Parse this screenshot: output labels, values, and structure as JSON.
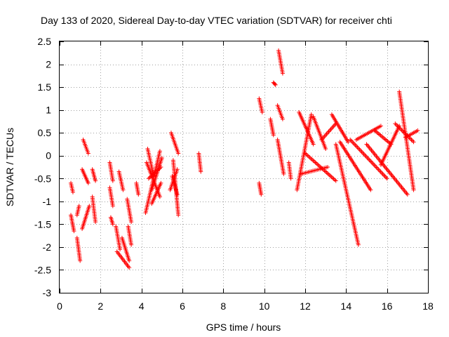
{
  "chart_data": {
    "type": "scatter",
    "title": "Day 133 of 2020, Sidereal Day-to-day VTEC variation (SDTVAR) for receiver chti",
    "xlabel": "GPS time / hours",
    "ylabel": "SDTVAR / TECUs",
    "xlim": [
      0,
      18
    ],
    "ylim": [
      -3,
      2.5
    ],
    "xticks": [
      0,
      2,
      4,
      6,
      8,
      10,
      12,
      14,
      16,
      18
    ],
    "yticks": [
      -3,
      -2.5,
      -2,
      -1.5,
      -1,
      -0.5,
      0,
      0.5,
      1,
      1.5,
      2,
      2.5
    ],
    "xtick_labels": [
      "0",
      "2",
      "4",
      "6",
      "8",
      "10",
      "12",
      "14",
      "16",
      "18"
    ],
    "ytick_labels": [
      "-3",
      "-2.5",
      "-2",
      "-1.5",
      "-1",
      "-0.5",
      "0",
      "0.5",
      "1",
      "1.5",
      "2",
      "2.5"
    ],
    "grid": true,
    "marker": "+",
    "color": "#ff0000",
    "series": [
      {
        "name": "SDTVAR",
        "segments": [
          {
            "x": [
              0.55,
              0.65
            ],
            "y": [
              -0.6,
              -0.8
            ]
          },
          {
            "x": [
              0.55,
              0.7
            ],
            "y": [
              -1.3,
              -1.65
            ]
          },
          {
            "x": [
              0.85,
              0.95
            ],
            "y": [
              -1.3,
              -1.1
            ]
          },
          {
            "x": [
              0.85,
              1.0
            ],
            "y": [
              -1.8,
              -2.3
            ]
          },
          {
            "x": [
              1.15,
              1.4
            ],
            "y": [
              0.35,
              0.05
            ]
          },
          {
            "x": [
              1.1,
              1.4
            ],
            "y": [
              -0.3,
              -0.6
            ]
          },
          {
            "x": [
              1.1,
              1.45
            ],
            "y": [
              -1.6,
              -1.1
            ]
          },
          {
            "x": [
              1.6,
              1.75
            ],
            "y": [
              -0.3,
              -0.55
            ]
          },
          {
            "x": [
              1.6,
              1.75
            ],
            "y": [
              -0.9,
              -1.45
            ]
          },
          {
            "x": [
              2.45,
              2.6
            ],
            "y": [
              -0.15,
              -0.55
            ]
          },
          {
            "x": [
              2.45,
              2.6
            ],
            "y": [
              -0.7,
              -1.1
            ]
          },
          {
            "x": [
              2.5,
              2.6
            ],
            "y": [
              -1.35,
              -1.5
            ]
          },
          {
            "x": [
              2.75,
              2.95
            ],
            "y": [
              -1.55,
              -2.05
            ]
          },
          {
            "x": [
              2.8,
              3.4
            ],
            "y": [
              -2.1,
              -2.45
            ]
          },
          {
            "x": [
              3.05,
              3.4
            ],
            "y": [
              -1.8,
              -2.3
            ]
          },
          {
            "x": [
              2.9,
              3.1
            ],
            "y": [
              -0.35,
              -0.75
            ]
          },
          {
            "x": [
              3.3,
              3.5
            ],
            "y": [
              -0.95,
              -1.45
            ]
          },
          {
            "x": [
              3.35,
              3.5
            ],
            "y": [
              -1.55,
              -1.95
            ]
          },
          {
            "x": [
              3.75,
              3.85
            ],
            "y": [
              -0.6,
              -0.85
            ]
          },
          {
            "x": [
              4.2,
              4.9
            ],
            "y": [
              -1.25,
              0.1
            ]
          },
          {
            "x": [
              4.25,
              4.9
            ],
            "y": [
              -0.15,
              -0.9
            ]
          },
          {
            "x": [
              4.35,
              4.95
            ],
            "y": [
              -0.5,
              -0.25
            ]
          },
          {
            "x": [
              4.5,
              5.0
            ],
            "y": [
              -0.75,
              -0.05
            ]
          },
          {
            "x": [
              4.3,
              4.6
            ],
            "y": [
              0.15,
              -0.45
            ]
          },
          {
            "x": [
              4.5,
              4.95
            ],
            "y": [
              -1.05,
              -0.6
            ]
          },
          {
            "x": [
              5.4,
              5.75
            ],
            "y": [
              -0.75,
              -0.3
            ]
          },
          {
            "x": [
              5.45,
              5.8
            ],
            "y": [
              0.5,
              0.05
            ]
          },
          {
            "x": [
              5.55,
              5.8
            ],
            "y": [
              -0.1,
              -1.3
            ]
          },
          {
            "x": [
              5.5,
              5.75
            ],
            "y": [
              -0.45,
              -0.85
            ]
          },
          {
            "x": [
              6.8,
              6.9
            ],
            "y": [
              0.05,
              -0.35
            ]
          },
          {
            "x": [
              9.75,
              9.9
            ],
            "y": [
              1.25,
              0.95
            ]
          },
          {
            "x": [
              9.75,
              9.85
            ],
            "y": [
              -0.6,
              -0.85
            ]
          },
          {
            "x": [
              10.3,
              10.45
            ],
            "y": [
              0.8,
              0.45
            ]
          },
          {
            "x": [
              10.45,
              10.55
            ],
            "y": [
              1.6,
              1.55
            ]
          },
          {
            "x": [
              10.7,
              10.9
            ],
            "y": [
              2.3,
              1.8
            ]
          },
          {
            "x": [
              10.65,
              10.9
            ],
            "y": [
              1.1,
              0.8
            ]
          },
          {
            "x": [
              10.65,
              10.95
            ],
            "y": [
              0.35,
              -0.4
            ]
          },
          {
            "x": [
              11.2,
              11.3
            ],
            "y": [
              -0.15,
              -0.5
            ]
          },
          {
            "x": [
              11.6,
              12.3
            ],
            "y": [
              -0.75,
              0.9
            ]
          },
          {
            "x": [
              11.7,
              12.4
            ],
            "y": [
              0.95,
              0.25
            ]
          },
          {
            "x": [
              11.8,
              13.1
            ],
            "y": [
              -0.4,
              -0.25
            ]
          },
          {
            "x": [
              12.0,
              13.5
            ],
            "y": [
              0.05,
              -0.55
            ]
          },
          {
            "x": [
              12.4,
              13.0
            ],
            "y": [
              0.85,
              0.15
            ]
          },
          {
            "x": [
              12.8,
              13.5
            ],
            "y": [
              0.35,
              0.7
            ]
          },
          {
            "x": [
              13.3,
              14.1
            ],
            "y": [
              0.9,
              0.3
            ]
          },
          {
            "x": [
              13.5,
              14.6
            ],
            "y": [
              0.25,
              -1.95
            ]
          },
          {
            "x": [
              13.7,
              15.2
            ],
            "y": [
              0.3,
              -0.75
            ]
          },
          {
            "x": [
              14.2,
              16.0
            ],
            "y": [
              0.35,
              -0.5
            ]
          },
          {
            "x": [
              14.5,
              15.7
            ],
            "y": [
              0.35,
              0.65
            ]
          },
          {
            "x": [
              15.0,
              17.0
            ],
            "y": [
              0.25,
              -0.85
            ]
          },
          {
            "x": [
              15.4,
              16.2
            ],
            "y": [
              0.55,
              0.25
            ]
          },
          {
            "x": [
              15.7,
              16.6
            ],
            "y": [
              -0.2,
              0.65
            ]
          },
          {
            "x": [
              16.4,
              17.3
            ],
            "y": [
              0.7,
              0.3
            ]
          },
          {
            "x": [
              16.6,
              17.3
            ],
            "y": [
              1.4,
              -0.75
            ]
          },
          {
            "x": [
              16.9,
              17.5
            ],
            "y": [
              0.4,
              0.55
            ]
          }
        ]
      }
    ]
  }
}
